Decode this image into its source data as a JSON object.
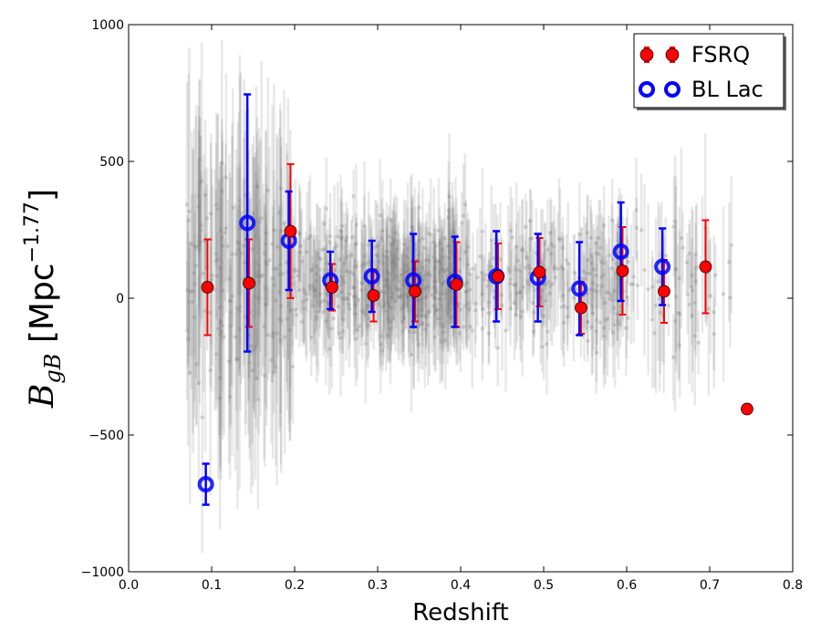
{
  "chart_data": {
    "type": "scatter",
    "title": "",
    "xlabel": "Redshift",
    "ylabel": {
      "main": "B",
      "sub": "gB",
      "unit": " [Mpc",
      "exp": "−1.77",
      "close": "]"
    },
    "xlim": [
      0.0,
      0.8
    ],
    "ylim": [
      -1000,
      1000
    ],
    "xticks": [
      0.0,
      0.1,
      0.2,
      0.3,
      0.4,
      0.5,
      0.6,
      0.7,
      0.8
    ],
    "xtick_labels": [
      "0.0",
      "0.1",
      "0.2",
      "0.3",
      "0.4",
      "0.5",
      "0.6",
      "0.7",
      "0.8"
    ],
    "yticks": [
      -1000,
      -500,
      0,
      500,
      1000
    ],
    "ytick_labels": [
      "−1000",
      "−500",
      "0",
      "500",
      "1000"
    ],
    "grid": false,
    "legend_position": "top-right",
    "colors": {
      "fsrq": "#ff0000",
      "bllac": "#0000ff",
      "background": "#808080"
    },
    "series": [
      {
        "name": "FSRQ",
        "marker": "filled-circle",
        "x": [
          0.095,
          0.145,
          0.195,
          0.245,
          0.295,
          0.345,
          0.395,
          0.445,
          0.495,
          0.545,
          0.595,
          0.645,
          0.695,
          0.745
        ],
        "y": [
          40,
          55,
          245,
          40,
          10,
          25,
          50,
          80,
          95,
          -35,
          100,
          25,
          115,
          -405
        ],
        "err": [
          175,
          160,
          245,
          85,
          95,
          110,
          155,
          120,
          125,
          95,
          160,
          115,
          170,
          null
        ]
      },
      {
        "name": "BL Lac",
        "marker": "open-circle",
        "x": [
          0.093,
          0.143,
          0.193,
          0.243,
          0.293,
          0.343,
          0.393,
          0.443,
          0.493,
          0.543,
          0.593,
          0.643
        ],
        "y": [
          -680,
          275,
          210,
          65,
          80,
          65,
          60,
          80,
          75,
          35,
          170,
          115
        ],
        "err": [
          75,
          470,
          180,
          105,
          130,
          170,
          165,
          165,
          160,
          170,
          180,
          140
        ]
      }
    ]
  }
}
